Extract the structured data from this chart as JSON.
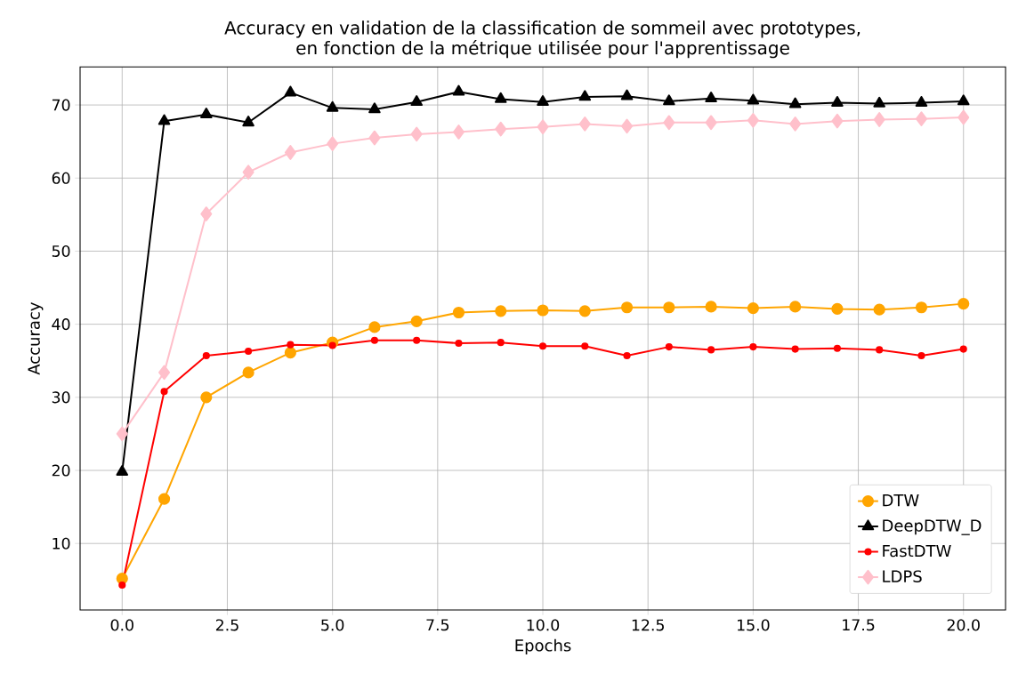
{
  "chart_data": {
    "type": "line",
    "title": "Accuracy en validation de la classification de sommeil avec prototypes,\nen fonction de la métrique utilisée pour l'apprentissage",
    "xlabel": "Epochs",
    "ylabel": "Accuracy",
    "x": [
      0,
      1,
      2,
      3,
      4,
      5,
      6,
      7,
      8,
      9,
      10,
      11,
      12,
      13,
      14,
      15,
      16,
      17,
      18,
      19,
      20
    ],
    "series": [
      {
        "name": "DTW",
        "color": "#ffa500",
        "marker": "circle",
        "values": [
          5.2,
          16.1,
          30.0,
          33.4,
          36.1,
          37.5,
          39.6,
          40.4,
          41.6,
          41.8,
          41.9,
          41.8,
          42.3,
          42.3,
          42.4,
          42.2,
          42.4,
          42.1,
          42.0,
          42.3,
          42.8
        ]
      },
      {
        "name": "DeepDTW_D",
        "color": "#000000",
        "marker": "triangle",
        "values": [
          19.8,
          67.8,
          68.7,
          67.6,
          71.7,
          69.6,
          69.4,
          70.4,
          71.8,
          70.8,
          70.4,
          71.1,
          71.2,
          70.5,
          70.9,
          70.6,
          70.1,
          70.3,
          70.2,
          70.3,
          70.5
        ]
      },
      {
        "name": "FastDTW",
        "color": "#ff0000",
        "marker": "point",
        "values": [
          4.3,
          30.8,
          35.7,
          36.3,
          37.2,
          37.1,
          37.8,
          37.8,
          37.4,
          37.5,
          37.0,
          37.0,
          35.7,
          36.9,
          36.5,
          36.9,
          36.6,
          36.7,
          36.5,
          35.7,
          36.6
        ]
      },
      {
        "name": "LDPS",
        "color": "#ffc0cb",
        "marker": "diamond",
        "values": [
          25.0,
          33.4,
          55.1,
          60.8,
          63.5,
          64.7,
          65.5,
          66.0,
          66.3,
          66.7,
          67.0,
          67.4,
          67.1,
          67.6,
          67.6,
          67.9,
          67.4,
          67.8,
          68.0,
          68.1,
          68.3
        ]
      }
    ],
    "xlim": [
      -1,
      21
    ],
    "ylim": [
      0.9,
      75.2
    ],
    "xticks": [
      {
        "value": 0,
        "label": "0.0"
      },
      {
        "value": 2.5,
        "label": "2.5"
      },
      {
        "value": 5,
        "label": "5.0"
      },
      {
        "value": 7.5,
        "label": "7.5"
      },
      {
        "value": 10,
        "label": "10.0"
      },
      {
        "value": 12.5,
        "label": "12.5"
      },
      {
        "value": 15,
        "label": "15.0"
      },
      {
        "value": 17.5,
        "label": "17.5"
      },
      {
        "value": 20,
        "label": "20.0"
      }
    ],
    "yticks": [
      10,
      20,
      30,
      40,
      50,
      60,
      70
    ],
    "grid": true,
    "legend": "bottom right",
    "line_style": "solid"
  }
}
